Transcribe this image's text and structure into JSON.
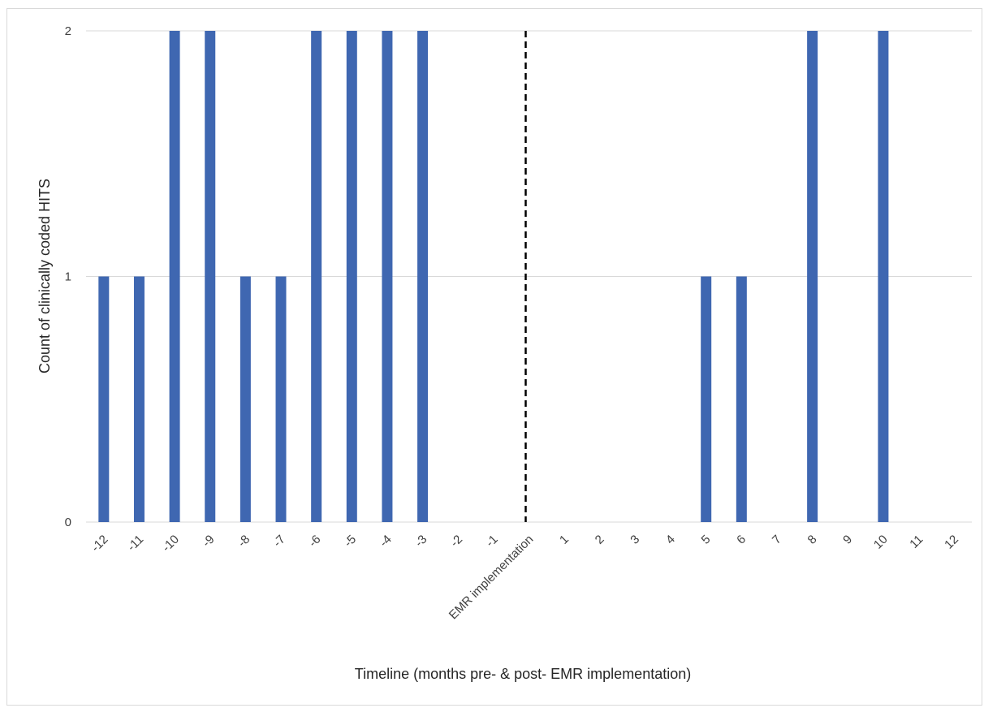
{
  "chart_data": {
    "type": "bar",
    "title": "",
    "xlabel": "Timeline (months pre- & post- EMR implementation)",
    "ylabel": "Count of clinically coded HITS",
    "ylim": [
      0,
      2
    ],
    "yticks": [
      0,
      1,
      2
    ],
    "grid": true,
    "legend": "none",
    "bar_color": "#3f67b1",
    "divider_color": "#000000",
    "categories": [
      "-12",
      "-11",
      "-10",
      "-9",
      "-8",
      "-7",
      "-6",
      "-5",
      "-4",
      "-3",
      "-2",
      "-1",
      "EMR implementation",
      "1",
      "2",
      "3",
      "4",
      "5",
      "6",
      "7",
      "8",
      "9",
      "10",
      "11",
      "12"
    ],
    "values": [
      1,
      1,
      2,
      2,
      1,
      1,
      2,
      2,
      2,
      2,
      0,
      0,
      0,
      0,
      0,
      0,
      0,
      1,
      1,
      0,
      2,
      0,
      2,
      0,
      0
    ],
    "divider_category": "EMR implementation"
  }
}
